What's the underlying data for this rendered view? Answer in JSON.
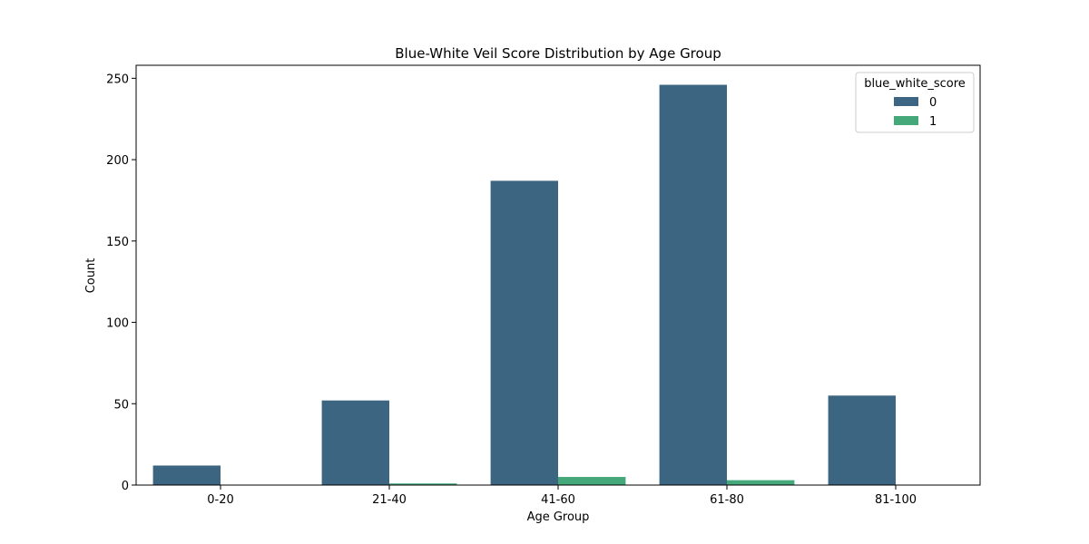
{
  "chart_data": {
    "type": "bar",
    "title": "Blue-White Veil Score Distribution by Age Group",
    "xlabel": "Age Group",
    "ylabel": "Count",
    "categories": [
      "0-20",
      "21-40",
      "41-60",
      "61-80",
      "81-100"
    ],
    "ylim": [
      0,
      258
    ],
    "yticks": [
      0,
      50,
      100,
      150,
      200,
      250
    ],
    "legend_title": "blue_white_score",
    "legend_position": "top-right",
    "grid": false,
    "series": [
      {
        "name": "0",
        "color": "#3b6580",
        "values": [
          12,
          52,
          187,
          246,
          55
        ]
      },
      {
        "name": "1",
        "color": "#44a87a",
        "values": [
          0,
          1,
          5,
          3,
          0
        ]
      }
    ]
  }
}
